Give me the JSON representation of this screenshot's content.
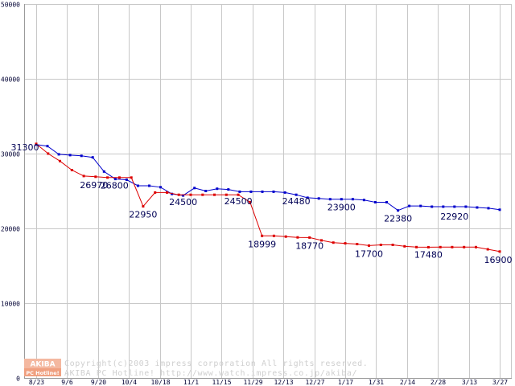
{
  "chart_data": {
    "type": "line",
    "title": "",
    "xlabel": "",
    "ylabel": "",
    "ylim": [
      0,
      50000
    ],
    "grid": true,
    "y_ticks": [
      0,
      10000,
      20000,
      30000,
      40000,
      50000
    ],
    "x_tick_labels": [
      "8/23",
      "9/6",
      "9/20",
      "10/4",
      "10/18",
      "11/1",
      "11/15",
      "11/29",
      "12/13",
      "12/27",
      "1/17",
      "1/31",
      "2/14",
      "2/28",
      "3/13",
      "3/27"
    ],
    "colors": {
      "blue_series": "#0000cc",
      "red_series": "#dd0000",
      "grid": "#c8c8c8",
      "labels": "#000055"
    },
    "series": [
      {
        "color": "blue",
        "values": [
          31200,
          31000,
          29900,
          29800,
          29700,
          29500,
          27600,
          26600,
          26500,
          25700,
          25700,
          25500,
          24600,
          24400,
          25400,
          25000,
          25300,
          25200,
          24900,
          24900,
          24900,
          24900,
          24800,
          24500,
          24100,
          24000,
          23900,
          23900,
          23900,
          23800,
          23500,
          23500,
          22400,
          23000,
          23000,
          22900,
          22900,
          22900,
          22900,
          22800,
          22700,
          22500
        ]
      },
      {
        "color": "red",
        "values": [
          31300,
          30000,
          29000,
          27800,
          27000,
          26900,
          26800,
          26800,
          26800,
          22950,
          24800,
          24800,
          24500,
          24500,
          24500,
          24500,
          24500,
          24500,
          23500,
          18999,
          18999,
          18900,
          18800,
          18770,
          18400,
          18100,
          18000,
          17900,
          17700,
          17800,
          17800,
          17600,
          17500,
          17480,
          17500,
          17500,
          17500,
          17500,
          17200,
          16900
        ]
      }
    ],
    "data_labels": [
      "31300",
      "26970",
      "26800",
      "22950",
      "24500",
      "24500",
      "18999",
      "24480",
      "18770",
      "23900",
      "17700",
      "22380",
      "17480",
      "22920",
      "16900"
    ]
  },
  "copyright": {
    "logo_top": "AKIBA",
    "logo_bottom": "PC Hotline!",
    "line1": "Copyright(c)2003 impress corporation All rights reserved.",
    "line2": "AKIBA PC Hotline! http://www.watch.impress.co.jp/akiba/"
  }
}
